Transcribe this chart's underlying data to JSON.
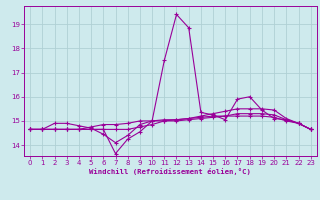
{
  "xlabel": "Windchill (Refroidissement éolien,°C)",
  "bg_color": "#ceeaed",
  "line_color": "#990099",
  "grid_color": "#b0d0d4",
  "xlim": [
    -0.5,
    23.5
  ],
  "ylim": [
    13.55,
    19.75
  ],
  "yticks": [
    14,
    15,
    16,
    17,
    18,
    19
  ],
  "xticks": [
    0,
    1,
    2,
    3,
    4,
    5,
    6,
    7,
    8,
    9,
    10,
    11,
    12,
    13,
    14,
    15,
    16,
    17,
    18,
    19,
    20,
    21,
    22,
    23
  ],
  "series": [
    {
      "x": [
        0,
        1,
        2,
        3,
        4,
        5,
        6,
        7,
        8,
        9,
        10,
        11,
        12,
        13,
        14,
        15,
        16,
        17,
        18,
        19,
        20,
        21,
        22,
        23
      ],
      "y": [
        14.65,
        14.65,
        14.9,
        14.9,
        14.8,
        14.7,
        14.45,
        14.1,
        14.4,
        14.85,
        15.0,
        17.5,
        19.4,
        18.85,
        15.35,
        15.25,
        15.05,
        15.9,
        16.0,
        15.45,
        15.1,
        15.05,
        14.9,
        14.65
      ]
    },
    {
      "x": [
        0,
        1,
        2,
        3,
        4,
        5,
        6,
        7,
        8,
        9,
        10,
        11,
        12,
        13,
        14,
        15,
        16,
        17,
        18,
        19,
        20,
        21,
        22,
        23
      ],
      "y": [
        14.65,
        14.65,
        14.65,
        14.65,
        14.65,
        14.65,
        14.65,
        13.65,
        14.25,
        14.55,
        15.0,
        15.0,
        15.05,
        15.1,
        15.2,
        15.3,
        15.4,
        15.5,
        15.5,
        15.5,
        15.45,
        15.1,
        14.9,
        14.65
      ]
    },
    {
      "x": [
        0,
        1,
        2,
        3,
        4,
        5,
        6,
        7,
        8,
        9,
        10,
        11,
        12,
        13,
        14,
        15,
        16,
        17,
        18,
        19,
        20,
        21,
        22,
        23
      ],
      "y": [
        14.65,
        14.65,
        14.65,
        14.65,
        14.65,
        14.75,
        14.85,
        14.85,
        14.9,
        15.0,
        15.0,
        15.05,
        15.05,
        15.1,
        15.15,
        15.2,
        15.2,
        15.3,
        15.3,
        15.3,
        15.25,
        15.05,
        14.9,
        14.65
      ]
    },
    {
      "x": [
        0,
        1,
        2,
        3,
        4,
        5,
        6,
        7,
        8,
        9,
        10,
        11,
        12,
        13,
        14,
        15,
        16,
        17,
        18,
        19,
        20,
        21,
        22,
        23
      ],
      "y": [
        14.65,
        14.65,
        14.65,
        14.65,
        14.65,
        14.65,
        14.65,
        14.65,
        14.65,
        14.75,
        14.85,
        15.0,
        15.0,
        15.05,
        15.1,
        15.15,
        15.2,
        15.2,
        15.2,
        15.2,
        15.15,
        15.0,
        14.9,
        14.65
      ]
    }
  ]
}
